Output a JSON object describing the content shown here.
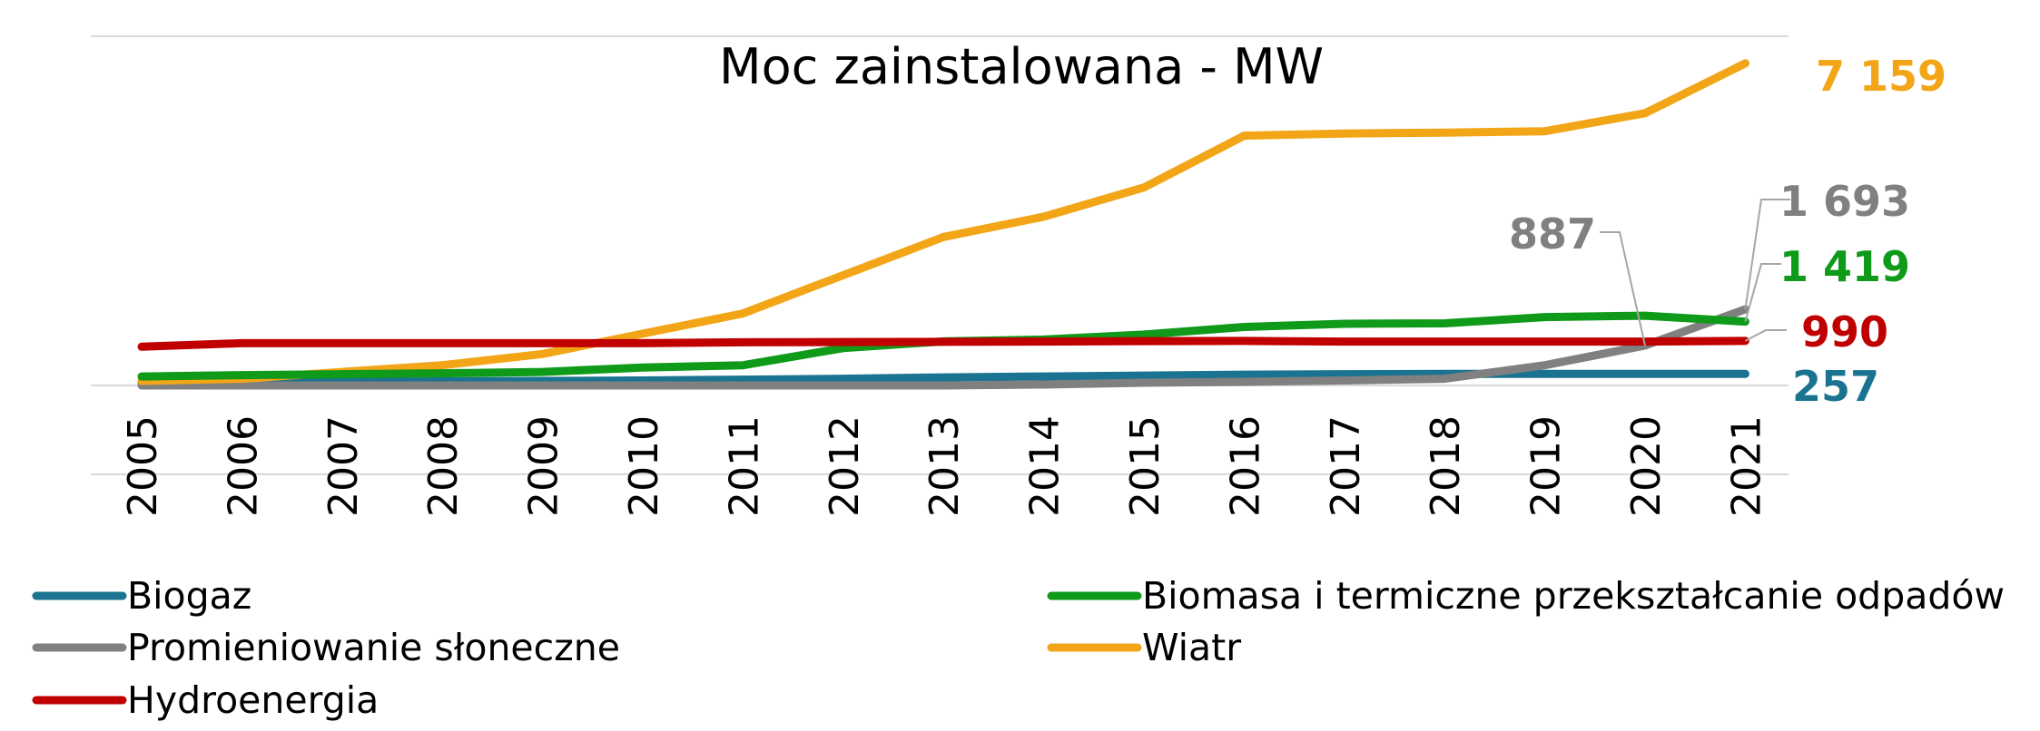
{
  "chart_data": {
    "type": "line",
    "title": "Moc zainstalowana - MW",
    "categories": [
      "2005",
      "2006",
      "2007",
      "2008",
      "2009",
      "2010",
      "2011",
      "2012",
      "2013",
      "2014",
      "2015",
      "2016",
      "2017",
      "2018",
      "2019",
      "2020",
      "2021"
    ],
    "ylim": [
      0,
      7800
    ],
    "grid": true,
    "legend_position": "bottom",
    "series": [
      {
        "name": "Biogaz",
        "color": "#1a7390",
        "values": [
          50,
          60,
          80,
          90,
          100,
          110,
          130,
          150,
          180,
          200,
          220,
          240,
          250,
          255,
          257,
          257,
          257
        ]
      },
      {
        "name": "Biomasa i termiczne przekształcanie odpadów",
        "color": "#0f9a1a",
        "values": [
          200,
          230,
          250,
          270,
          300,
          400,
          450,
          830,
          980,
          1020,
          1130,
          1300,
          1370,
          1380,
          1520,
          1550,
          1419
        ]
      },
      {
        "name": "Promieniowanie słoneczne",
        "color": "#808080",
        "values": [
          0,
          0,
          0,
          0,
          0,
          0,
          0,
          0,
          0,
          20,
          60,
          80,
          110,
          150,
          450,
          887,
          1693
        ]
      },
      {
        "name": "Wiatr",
        "color": "#f2a516",
        "values": [
          100,
          150,
          300,
          450,
          700,
          1150,
          1600,
          2450,
          3300,
          3750,
          4400,
          5550,
          5600,
          5620,
          5650,
          6050,
          7159
        ]
      },
      {
        "name": "Hydroenergia",
        "color": "#c00000",
        "values": [
          860,
          940,
          940,
          940,
          940,
          940,
          960,
          965,
          970,
          975,
          985,
          990,
          975,
          975,
          975,
          975,
          990
        ]
      }
    ],
    "annotations": [
      {
        "series": "Wiatr",
        "category": "2021",
        "text": "7 159"
      },
      {
        "series": "Promieniowanie słoneczne",
        "category": "2021",
        "text": "1 693"
      },
      {
        "series": "Promieniowanie słoneczne",
        "category": "2020",
        "text": "887"
      },
      {
        "series": "Biomasa i termiczne przekształcanie odpadów",
        "category": "2021",
        "text": "1 419"
      },
      {
        "series": "Hydroenergia",
        "category": "2021",
        "text": "990"
      },
      {
        "series": "Biogaz",
        "category": "2021",
        "text": "257"
      }
    ]
  }
}
